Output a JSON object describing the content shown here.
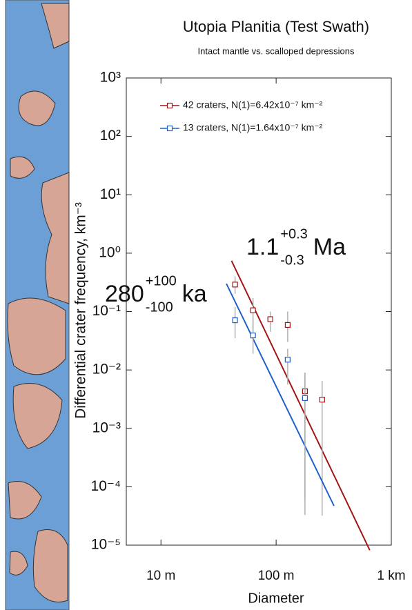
{
  "chart_data": {
    "type": "scatter",
    "title": "Utopia Planitia (Test Swath)",
    "subtitle": "Intact mantle vs. scalloped depressions",
    "x_label": "Diameter",
    "y_label": "Differential crater frequency, km⁻³",
    "log_x": true,
    "log_y": true,
    "xlim": [
      5,
      1000
    ],
    "ylim": [
      1e-05,
      1000
    ],
    "xticks": [
      {
        "value": 10,
        "label": "10 m"
      },
      {
        "value": 100,
        "label": "100 m"
      },
      {
        "value": 1000,
        "label": "1 km"
      }
    ],
    "yticks": [
      {
        "value": 1000,
        "label": "10³"
      },
      {
        "value": 100,
        "label": "10²"
      },
      {
        "value": 10,
        "label": "10¹"
      },
      {
        "value": 1,
        "label": "10⁰"
      },
      {
        "value": 0.1,
        "label": "10⁻¹"
      },
      {
        "value": 0.01,
        "label": "10⁻²"
      },
      {
        "value": 0.001,
        "label": "10⁻³"
      },
      {
        "value": 0.0001,
        "label": "10⁻⁴"
      },
      {
        "value": 1e-05,
        "label": "10⁻⁵"
      }
    ],
    "legend": "upper left",
    "error_color": "#b0b0b0",
    "series": [
      {
        "name": "42 craters, N(1)=6.42x10⁻⁷ km⁻²",
        "color": "#a31414",
        "x": [
          44,
          63,
          89,
          126,
          178,
          251
        ],
        "values": [
          0.29,
          0.105,
          0.074,
          0.059,
          0.0043,
          0.0031
        ],
        "yerr_low": [
          0.2,
          0.046,
          0.045,
          0.03,
          6.3e-05,
          3.2e-05
        ],
        "yerr_high": [
          0.4,
          0.17,
          0.1,
          0.1,
          0.009,
          0.0065
        ],
        "fit_x": [
          41,
          650
        ],
        "fit_y": [
          0.74,
          8.2e-06
        ],
        "annotation": {
          "value": "1.1",
          "plus": "+0.3",
          "minus": "-0.3",
          "unit": "Ma"
        }
      },
      {
        "name": "13 craters, N(1)=1.64x10⁻⁷ km⁻²",
        "color": "#1f5fc8",
        "x": [
          44,
          63,
          126,
          178
        ],
        "values": [
          0.071,
          0.039,
          0.015,
          0.0033
        ],
        "yerr_low": [
          0.035,
          0.019,
          0.0056,
          3.3e-05
        ],
        "yerr_high": [
          0.12,
          0.075,
          0.023,
          0.009
        ],
        "fit_x": [
          37,
          318
        ],
        "fit_y": [
          0.3,
          4.7e-05
        ],
        "annotation": {
          "value": "280",
          "plus": "+100",
          "minus": "-100",
          "unit": "ka"
        }
      }
    ]
  }
}
